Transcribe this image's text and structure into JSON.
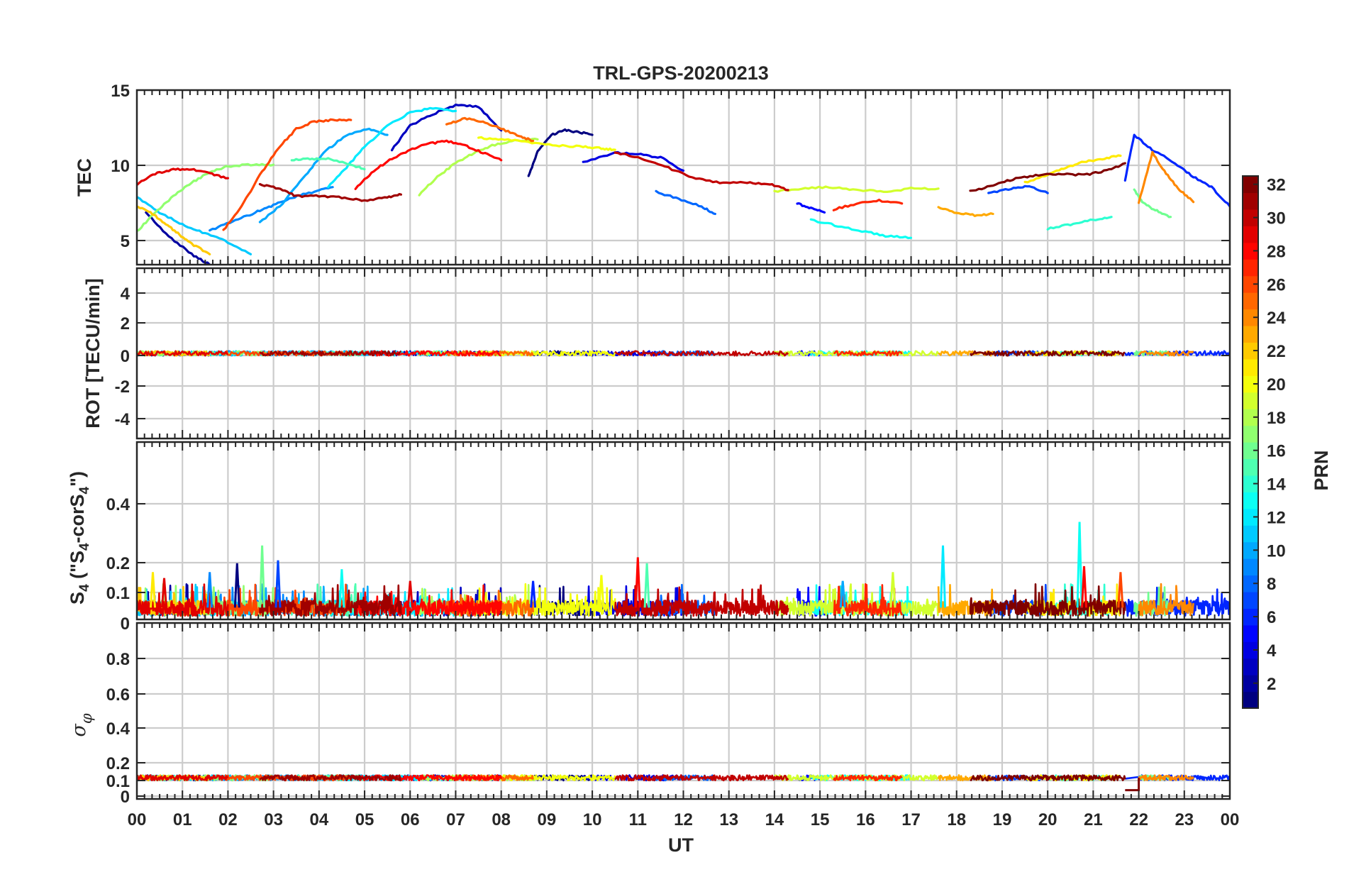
{
  "chart_data": {
    "type": "line",
    "title": "TRL-GPS-20200213",
    "xlabel": "UT",
    "x_tick_labels": [
      "00",
      "01",
      "02",
      "03",
      "04",
      "05",
      "06",
      "07",
      "08",
      "09",
      "10",
      "11",
      "12",
      "13",
      "14",
      "15",
      "16",
      "17",
      "18",
      "19",
      "20",
      "21",
      "22",
      "23",
      "00"
    ],
    "xlim_hours": [
      0,
      24
    ],
    "colorbar": {
      "label": "PRN",
      "range": [
        1,
        32
      ],
      "tick_labels": [
        "2",
        "4",
        "6",
        "8",
        "10",
        "12",
        "14",
        "16",
        "18",
        "20",
        "22",
        "24",
        "26",
        "28",
        "30",
        "32"
      ],
      "colormap": "jet"
    },
    "panels": [
      {
        "id": "tec",
        "ylabel": "TEC",
        "ylim": [
          3.3,
          15
        ],
        "y_tick_labels": [
          "5",
          "10",
          "15"
        ],
        "series": [
          {
            "prn": 1,
            "x": [
              8.6,
              8.8,
              9.1,
              9.4,
              9.7,
              10.0
            ],
            "y": [
              9.2,
              10.9,
              12.0,
              12.3,
              12.2,
              12.0
            ]
          },
          {
            "prn": 2,
            "x": [
              0.2,
              0.7,
              1.2,
              1.6
            ],
            "y": [
              6.8,
              5.2,
              4.0,
              3.3
            ]
          },
          {
            "prn": 3,
            "x": [
              5.6,
              6.0,
              6.5,
              7.0,
              7.5,
              8.0
            ],
            "y": [
              11.0,
              12.6,
              13.4,
              14.0,
              13.9,
              12.3
            ]
          },
          {
            "prn": 4,
            "x": [
              9.8,
              10.5,
              11.0,
              11.5,
              12.0
            ],
            "y": [
              10.2,
              10.8,
              10.7,
              10.5,
              9.6
            ]
          },
          {
            "prn": 5,
            "x": [
              14.5,
              14.8,
              15.1
            ],
            "y": [
              7.4,
              7.1,
              6.8
            ]
          },
          {
            "prn": 6,
            "x": [
              21.7,
              21.9,
              22.3,
              22.8,
              23.2,
              23.6,
              24.0
            ],
            "y": [
              9.0,
              12.0,
              11.0,
              10.1,
              9.2,
              8.5,
              7.2
            ]
          },
          {
            "prn": 7,
            "x": [
              18.7,
              19.2,
              19.6,
              20.0
            ],
            "y": [
              8.1,
              8.4,
              8.6,
              8.1
            ]
          },
          {
            "prn": 8,
            "x": [
              11.4,
              11.9,
              12.4,
              12.7
            ],
            "y": [
              8.2,
              7.7,
              7.2,
              6.7
            ]
          },
          {
            "prn": 9,
            "x": [
              1.6,
              2.1,
              2.6,
              3.0,
              3.4,
              3.9,
              4.3
            ],
            "y": [
              5.6,
              6.2,
              6.8,
              7.3,
              7.8,
              8.2,
              8.5
            ]
          },
          {
            "prn": 10,
            "x": [
              2.7,
              3.2,
              3.7,
              4.1,
              4.6,
              5.1,
              5.5
            ],
            "y": [
              6.1,
              7.4,
              9.3,
              10.8,
              12.0,
              12.4,
              12.0
            ]
          },
          {
            "prn": 11,
            "x": [
              0.0,
              0.5,
              1.0,
              1.5,
              2.0,
              2.5
            ],
            "y": [
              7.8,
              6.8,
              6.0,
              5.4,
              4.8,
              4.0
            ]
          },
          {
            "prn": 12,
            "x": [
              4.2,
              4.6,
              5.0,
              5.5,
              6.0,
              6.5,
              7.0
            ],
            "y": [
              8.5,
              9.8,
              11.2,
              12.6,
              13.5,
              13.8,
              13.6
            ]
          },
          {
            "prn": 13,
            "x": [
              14.8,
              15.4,
              16.0,
              16.5,
              17.0
            ],
            "y": [
              6.3,
              5.9,
              5.5,
              5.2,
              5.1
            ]
          },
          {
            "prn": 14,
            "x": [
              20.0,
              20.5,
              21.0,
              21.4
            ],
            "y": [
              5.7,
              6.0,
              6.3,
              6.5
            ]
          },
          {
            "prn": 15,
            "x": [
              3.4,
              3.8,
              4.2,
              4.7,
              5.0
            ],
            "y": [
              10.3,
              10.4,
              10.4,
              10.0,
              9.7
            ]
          },
          {
            "prn": 16,
            "x": [
              21.9,
              22.1,
              22.4,
              22.7
            ],
            "y": [
              8.3,
              7.4,
              6.9,
              6.5
            ]
          },
          {
            "prn": 17,
            "x": [
              0.0,
              0.4,
              0.8,
              1.2,
              1.6,
              2.0,
              2.5,
              3.0
            ],
            "y": [
              5.5,
              6.8,
              7.9,
              8.8,
              9.5,
              9.9,
              10.0,
              10.0
            ]
          },
          {
            "prn": 18,
            "x": [
              6.2,
              6.6,
              7.0,
              7.4,
              7.8,
              8.3,
              8.8
            ],
            "y": [
              8.0,
              9.2,
              10.1,
              10.8,
              11.3,
              11.6,
              11.7
            ]
          },
          {
            "prn": 19,
            "x": [
              14.0,
              14.6,
              15.2,
              15.8,
              16.4,
              17.0,
              17.6
            ],
            "y": [
              8.2,
              8.4,
              8.5,
              8.3,
              8.2,
              8.4,
              8.4
            ]
          },
          {
            "prn": 20,
            "x": [
              7.5,
              8.0,
              8.6,
              9.2,
              9.8,
              10.2,
              10.5
            ],
            "y": [
              11.8,
              11.7,
              11.5,
              11.3,
              11.2,
              11.1,
              11.0
            ]
          },
          {
            "prn": 21,
            "x": [
              19.5,
              20.0,
              20.4,
              20.8,
              21.2,
              21.6
            ],
            "y": [
              8.8,
              9.3,
              9.8,
              10.2,
              10.4,
              10.6
            ]
          },
          {
            "prn": 22,
            "x": [
              0.0,
              0.3,
              0.6,
              0.9,
              1.2,
              1.6
            ],
            "y": [
              7.2,
              6.8,
              6.1,
              5.4,
              4.7,
              4.0
            ]
          },
          {
            "prn": 23,
            "x": [
              17.6,
              18.0,
              18.4,
              18.8
            ],
            "y": [
              7.1,
              6.8,
              6.6,
              6.7
            ]
          },
          {
            "prn": 24,
            "x": [
              22.0,
              22.3,
              22.6,
              22.9,
              23.2
            ],
            "y": [
              7.5,
              10.8,
              9.4,
              8.3,
              7.5
            ]
          },
          {
            "prn": 25,
            "x": [
              6.8,
              7.2,
              7.6,
              8.0,
              8.4,
              8.7
            ],
            "y": [
              12.7,
              13.1,
              12.9,
              12.4,
              11.9,
              11.6
            ]
          },
          {
            "prn": 26,
            "x": [
              1.9,
              2.3,
              2.7,
              3.1,
              3.5,
              3.9,
              4.3,
              4.7
            ],
            "y": [
              5.6,
              7.2,
              9.3,
              11.1,
              12.4,
              12.9,
              13.0,
              13.0
            ]
          },
          {
            "prn": 27,
            "x": [
              15.3,
              15.8,
              16.3,
              16.8
            ],
            "y": [
              7.0,
              7.4,
              7.6,
              7.4
            ]
          },
          {
            "prn": 28,
            "x": [
              4.8,
              5.2,
              5.6,
              6.0,
              6.4,
              6.8,
              7.2,
              7.6,
              8.0
            ],
            "y": [
              8.4,
              9.6,
              10.4,
              11.0,
              11.4,
              11.6,
              11.3,
              10.8,
              10.3
            ]
          },
          {
            "prn": 29,
            "x": [
              0.0,
              0.4,
              0.8,
              1.2,
              1.6,
              2.0
            ],
            "y": [
              8.7,
              9.4,
              9.7,
              9.7,
              9.4,
              9.1
            ]
          },
          {
            "prn": 30,
            "x": [
              10.5,
              11.0,
              11.6,
              12.2,
              12.8,
              13.4,
              13.9,
              14.3
            ],
            "y": [
              10.8,
              10.5,
              9.9,
              9.1,
              8.8,
              8.8,
              8.7,
              8.3
            ]
          },
          {
            "prn": 31,
            "x": [
              2.7,
              3.1,
              3.5,
              4.0,
              4.5,
              5.0,
              5.5,
              5.8
            ],
            "y": [
              8.7,
              8.4,
              7.9,
              7.9,
              7.8,
              7.6,
              7.8,
              8.0
            ]
          },
          {
            "prn": 32,
            "x": [
              18.3,
              18.8,
              19.3,
              19.8,
              20.3,
              20.8,
              21.3,
              21.7
            ],
            "y": [
              8.2,
              8.6,
              9.1,
              9.3,
              9.4,
              9.3,
              9.6,
              10.1
            ]
          }
        ]
      },
      {
        "id": "rot",
        "ylabel": "ROT [TECU/min]",
        "ylim": [
          -5.5,
          5.5
        ],
        "y_tick_labels": [
          "4",
          "2",
          "0",
          "-2",
          "-4"
        ],
        "baseline": 0.0,
        "noise_amplitude": 0.15
      },
      {
        "id": "s4",
        "ylabel": "S4 (\"S4-corS4\")",
        "ylim": [
          0,
          0.6
        ],
        "y_tick_labels": [
          "0.4",
          "0.2",
          "0.1",
          "0"
        ],
        "typical_level": 0.04,
        "spikes": [
          {
            "hour": 0.35,
            "value": 0.16
          },
          {
            "hour": 0.6,
            "value": 0.14
          },
          {
            "hour": 1.6,
            "value": 0.16
          },
          {
            "hour": 2.2,
            "value": 0.19
          },
          {
            "hour": 2.75,
            "value": 0.25
          },
          {
            "hour": 3.1,
            "value": 0.2
          },
          {
            "hour": 4.5,
            "value": 0.17
          },
          {
            "hour": 6.0,
            "value": 0.13
          },
          {
            "hour": 8.7,
            "value": 0.13
          },
          {
            "hour": 10.2,
            "value": 0.15
          },
          {
            "hour": 11.0,
            "value": 0.21
          },
          {
            "hour": 11.2,
            "value": 0.19
          },
          {
            "hour": 15.5,
            "value": 0.13
          },
          {
            "hour": 16.6,
            "value": 0.16
          },
          {
            "hour": 17.7,
            "value": 0.25
          },
          {
            "hour": 20.7,
            "value": 0.33
          },
          {
            "hour": 20.8,
            "value": 0.18
          },
          {
            "hour": 21.6,
            "value": 0.16
          }
        ]
      },
      {
        "id": "sigphi",
        "ylabel": "σφ",
        "ylim": [
          0,
          1.0
        ],
        "y_tick_labels": [
          "0.8",
          "0.6",
          "0.4",
          "0.2",
          "0.1",
          "0"
        ],
        "typical_level": 0.12,
        "gap": {
          "start": 21.7,
          "end": 22.0,
          "value": 0.05
        }
      }
    ]
  }
}
